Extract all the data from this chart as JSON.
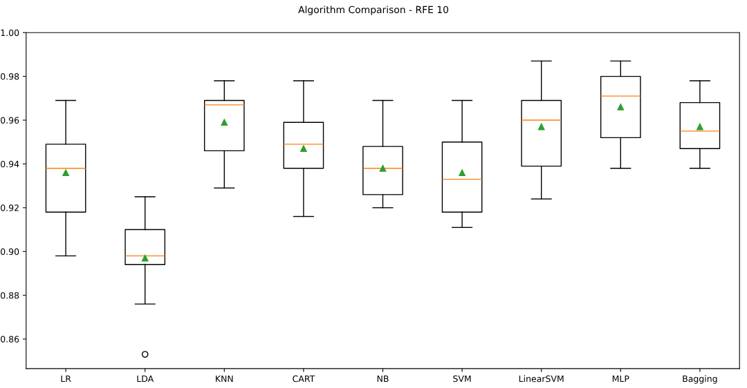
{
  "chart_data": {
    "type": "box",
    "title": "Algorithm Comparison - RFE 10",
    "categories": [
      "LR",
      "LDA",
      "KNN",
      "CART",
      "NB",
      "SVM",
      "LinearSVM",
      "MLP",
      "Bagging"
    ],
    "boxes": [
      {
        "low": 0.898,
        "q1": 0.918,
        "median": 0.938,
        "q3": 0.949,
        "high": 0.969,
        "mean": 0.936
      },
      {
        "low": 0.876,
        "q1": 0.894,
        "median": 0.898,
        "q3": 0.91,
        "high": 0.925,
        "mean": 0.897,
        "outliers": [
          0.853
        ]
      },
      {
        "low": 0.929,
        "q1": 0.946,
        "median": 0.967,
        "q3": 0.969,
        "high": 0.978,
        "mean": 0.959
      },
      {
        "low": 0.916,
        "q1": 0.938,
        "median": 0.949,
        "q3": 0.959,
        "high": 0.978,
        "mean": 0.947
      },
      {
        "low": 0.92,
        "q1": 0.926,
        "median": 0.938,
        "q3": 0.948,
        "high": 0.969,
        "mean": 0.938
      },
      {
        "low": 0.911,
        "q1": 0.918,
        "median": 0.933,
        "q3": 0.95,
        "high": 0.969,
        "mean": 0.936
      },
      {
        "low": 0.924,
        "q1": 0.939,
        "median": 0.96,
        "q3": 0.969,
        "high": 0.987,
        "mean": 0.957
      },
      {
        "low": 0.938,
        "q1": 0.952,
        "median": 0.971,
        "q3": 0.98,
        "high": 0.987,
        "mean": 0.966
      },
      {
        "low": 0.938,
        "q1": 0.947,
        "median": 0.955,
        "q3": 0.968,
        "high": 0.978,
        "mean": 0.957
      }
    ],
    "ylim": [
      0.8465,
      1.0
    ],
    "yticks": [
      0.86,
      0.88,
      {
        "value": 0.9,
        "label": "0.90"
      },
      0.92,
      0.94,
      0.96,
      0.98,
      {
        "value": 1.0,
        "label": "1.00"
      }
    ],
    "marker": "triangle",
    "grid": false,
    "legend": false
  }
}
